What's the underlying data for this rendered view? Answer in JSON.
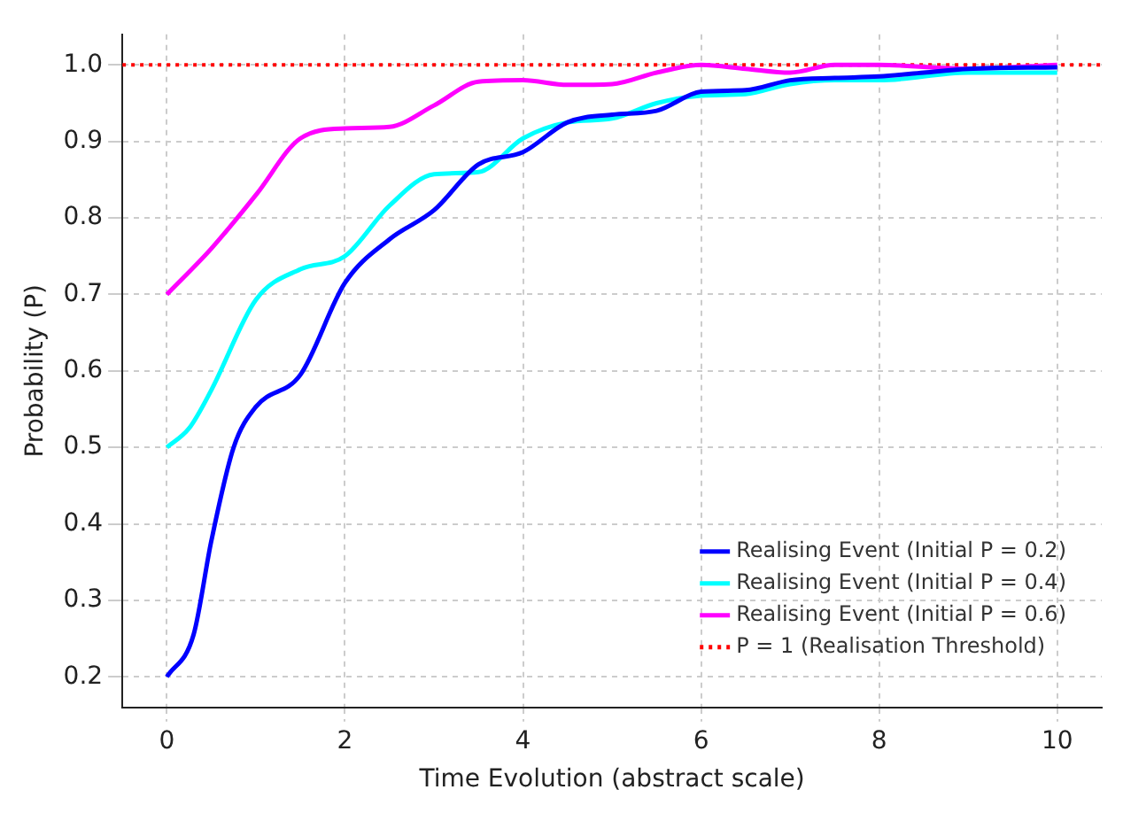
{
  "chart_data": {
    "type": "line",
    "xlabel": "Time Evolution (abstract scale)",
    "ylabel": "Probability (P)",
    "xlim": [
      -0.5,
      10.5
    ],
    "ylim": [
      0.16,
      1.04
    ],
    "xticks": [
      0,
      2,
      4,
      6,
      8,
      10
    ],
    "yticks": [
      0.2,
      0.3,
      0.4,
      0.5,
      0.6,
      0.7,
      0.8,
      0.9,
      {
        "value": 1.0,
        "label": "1.0"
      }
    ],
    "grid": true,
    "legend": "bottom right",
    "line_style": "solid",
    "marker": "none",
    "series": [
      {
        "name": "Realising Event (Initial P = 0.2)",
        "color": "#0000ff",
        "x": [
          0,
          0.3,
          0.5,
          0.75,
          1,
          1.5,
          2,
          2.5,
          3,
          3.5,
          4,
          4.5,
          5,
          5.5,
          6,
          6.5,
          7,
          7.5,
          8,
          8.5,
          9,
          10
        ],
        "values": [
          0.2,
          0.255,
          0.378,
          0.5,
          0.553,
          0.595,
          0.715,
          0.772,
          0.81,
          0.87,
          0.886,
          0.925,
          0.935,
          0.94,
          0.965,
          0.967,
          0.98,
          0.983,
          0.985,
          0.99,
          0.995,
          0.997
        ]
      },
      {
        "name": "Realising Event (Initial P = 0.4)",
        "color": "#00ffff",
        "x": [
          0,
          0.25,
          0.5,
          1,
          1.5,
          2,
          2.5,
          3,
          3.5,
          4,
          4.5,
          5,
          5.5,
          6,
          6.5,
          7,
          7.5,
          8,
          9,
          10
        ],
        "values": [
          0.5,
          0.525,
          0.575,
          0.693,
          0.733,
          0.75,
          0.816,
          0.857,
          0.86,
          0.904,
          0.925,
          0.93,
          0.95,
          0.96,
          0.962,
          0.975,
          0.98,
          0.98,
          0.99,
          0.99
        ]
      },
      {
        "name": "Realising Event (Initial P = 0.6)",
        "color": "#ff00ff",
        "x": [
          0,
          0.5,
          1,
          1.5,
          2,
          2.5,
          3,
          3.5,
          4,
          4.5,
          5,
          5.5,
          6,
          6.5,
          7,
          7.5,
          8,
          9,
          10
        ],
        "values": [
          0.7,
          0.76,
          0.83,
          0.904,
          0.917,
          0.919,
          0.947,
          0.978,
          0.98,
          0.974,
          0.975,
          0.99,
          1.0,
          0.995,
          0.99,
          1.0,
          1.0,
          0.995,
          1.0
        ]
      }
    ],
    "ref_lines": [
      {
        "axis": "y",
        "value": 1.0,
        "label": "P = 1 (Realisation Threshold)",
        "color": "#ff0000",
        "line_style": "dotted"
      }
    ]
  }
}
